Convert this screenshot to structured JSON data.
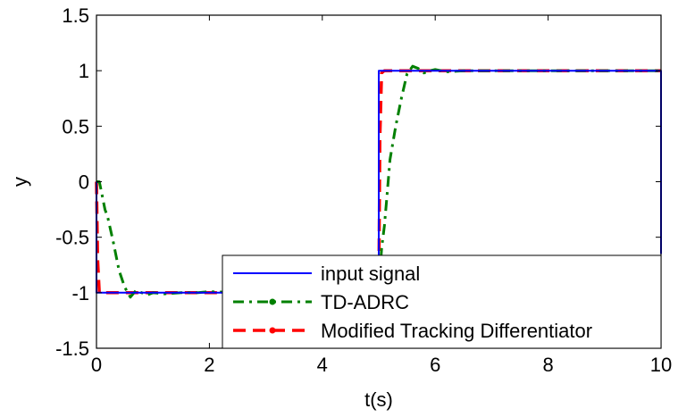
{
  "chart_data": {
    "type": "line",
    "title": "",
    "xlabel": "t(s)",
    "ylabel": "y",
    "xlim": [
      0,
      10
    ],
    "ylim": [
      -1.5,
      1.5
    ],
    "xticks": [
      0,
      2,
      4,
      6,
      8,
      10
    ],
    "yticks": [
      -1.5,
      -1,
      -0.5,
      0,
      0.5,
      1,
      1.5
    ],
    "xtick_labels": [
      "0",
      "2",
      "4",
      "6",
      "8",
      "10"
    ],
    "ytick_labels": [
      "-1.5",
      "-1",
      "-0.5",
      "0",
      "0.5",
      "1",
      "1.5"
    ],
    "grid": false,
    "legend_position": "bottom-right",
    "series": [
      {
        "name": "input signal",
        "color": "#0000ff",
        "style": "solid",
        "x": [
          0,
          0,
          5,
          5,
          10,
          10
        ],
        "y": [
          0,
          -1,
          -1,
          1,
          1,
          -0.65
        ]
      },
      {
        "name": "TD-ADRC",
        "color": "#008000",
        "style": "dashdot",
        "x": [
          0,
          0.05,
          0.1,
          0.15,
          0.2,
          0.3,
          0.4,
          0.5,
          0.6,
          0.7,
          0.8,
          0.9,
          1.0,
          1.2,
          1.5,
          1.8,
          2.0,
          2.5,
          3.0,
          3.5,
          4.0,
          4.5,
          5.0,
          5.05,
          5.1,
          5.15,
          5.2,
          5.3,
          5.4,
          5.5,
          5.6,
          5.7,
          5.8,
          5.9,
          6.0,
          6.2,
          6.5,
          7.0,
          7.5,
          8.0,
          8.5,
          9.0,
          9.5,
          10.0
        ],
        "y": [
          0,
          0.0,
          -0.12,
          -0.25,
          -0.32,
          -0.55,
          -0.8,
          -0.95,
          -1.04,
          -0.98,
          -1.0,
          -1.02,
          -1.0,
          -1.01,
          -1.0,
          -1.0,
          -0.99,
          -1.0,
          -1.0,
          -1.0,
          -1.0,
          -1.0,
          -1.0,
          -0.6,
          -0.4,
          -0.1,
          0.2,
          0.5,
          0.75,
          0.97,
          1.04,
          1.02,
          0.98,
          1.0,
          1.01,
          0.99,
          1.0,
          1.0,
          1.0,
          1.0,
          1.0,
          1.0,
          1.0,
          1.0
        ]
      },
      {
        "name": "Modified Tracking Differentiator",
        "color": "#ff0000",
        "style": "dashed",
        "x": [
          0,
          0.02,
          0.05,
          0.1,
          1.0,
          2.0,
          3.0,
          4.0,
          5.0,
          5.02,
          5.05,
          5.1,
          6.0,
          7.0,
          8.0,
          9.0,
          10.0
        ],
        "y": [
          0,
          -0.7,
          -1.0,
          -1.0,
          -1.0,
          -1.0,
          -1.0,
          -1.0,
          -1.0,
          0.4,
          0.98,
          1.0,
          1.0,
          1.0,
          1.0,
          1.0,
          1.0
        ]
      }
    ]
  },
  "legend": {
    "items": [
      "input signal",
      "TD-ADRC",
      "Modified Tracking Differentiator"
    ]
  }
}
